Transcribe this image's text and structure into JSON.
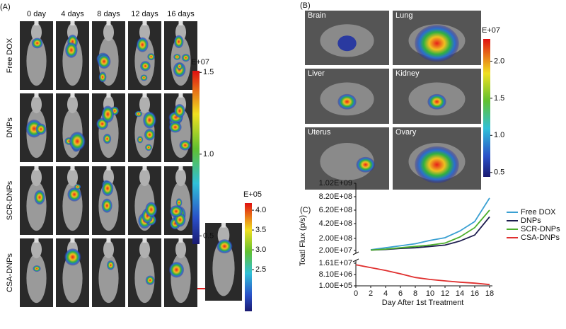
{
  "panel_a": {
    "label": "(A)",
    "columns": [
      "0 day",
      "4 days",
      "8 days",
      "12 days",
      "16 days"
    ],
    "rows": [
      "Free DOX",
      "DNPs",
      "SCR-DNPs",
      "CSA-DNPs"
    ],
    "colorbar": {
      "exponent": "E+07",
      "clim": [
        0.45,
        1.51
      ],
      "ticks": [
        1.5,
        {
          "value": 1,
          "label": "1.0"
        },
        0.5
      ]
    },
    "inset_colorbar": {
      "exponent": "E+05",
      "clim": [
        1.45,
        4.18
      ],
      "ticks": [
        {
          "value": 4,
          "label": "4.0"
        },
        3.5,
        {
          "value": 3,
          "label": "3.0"
        },
        2.5
      ]
    }
  },
  "panel_b": {
    "label": "(B)",
    "organs": [
      "Brain",
      "Lung",
      "Liver",
      "Kidney",
      "Uterus",
      "Ovary"
    ],
    "colorbar": {
      "exponent": "E+07",
      "clim": [
        0.44,
        2.3
      ],
      "ticks": [
        {
          "value": 2,
          "label": "2.0"
        },
        1.5,
        {
          "value": 1,
          "label": "1.0"
        },
        0.5
      ]
    }
  },
  "chart_data": {
    "type": "line",
    "panel_label": "(C)",
    "xlabel": "Day After 1st Treatment",
    "ylabel": "Toatl Flux (p/s)",
    "x": [
      0,
      2,
      4,
      6,
      8,
      10,
      12,
      14,
      16,
      18
    ],
    "xlim": [
      0,
      18
    ],
    "xticks": [
      0,
      2,
      4,
      6,
      8,
      10,
      12,
      14,
      16,
      18
    ],
    "ylim": [
      20000000,
      1020000000
    ],
    "yticks": [
      {
        "value": 20000000,
        "label": "2.00E+07"
      },
      {
        "value": 200000000,
        "label": "2.00E+08"
      },
      {
        "value": 420000000,
        "label": "4.20E+08"
      },
      {
        "value": 620000000,
        "label": "6.20E+08"
      },
      {
        "value": 820000000,
        "label": "8.20E+08"
      },
      {
        "value": 1020000000,
        "label": "1.02E+09"
      }
    ],
    "ylim_lower": [
      100000,
      16100000
    ],
    "yticks_lower": [
      {
        "value": 100000,
        "label": "1.00E+05"
      },
      {
        "value": 8100000,
        "label": "8.10E+06"
      },
      {
        "value": 16100000,
        "label": "1.61E+07"
      }
    ],
    "legend": "upper right",
    "series": [
      {
        "name": "Free DOX",
        "color": "#3aa0d2",
        "values": [
          null,
          30000000,
          60000000,
          90000000,
          120000000,
          170000000,
          210000000,
          310000000,
          450000000,
          800000000
        ]
      },
      {
        "name": "DNPs",
        "color": "#1c1c4e",
        "values": [
          null,
          25000000,
          35000000,
          50000000,
          60000000,
          80000000,
          100000000,
          160000000,
          250000000,
          520000000
        ]
      },
      {
        "name": "SCR-DNPs",
        "color": "#4cae2c",
        "values": [
          null,
          25000000,
          40000000,
          60000000,
          80000000,
          100000000,
          130000000,
          220000000,
          360000000,
          620000000
        ]
      },
      {
        "name": "CSA-DNPs",
        "color": "#e0302f",
        "axis": "lower",
        "values": [
          15000000,
          13000000,
          11000000,
          8600000,
          6000000,
          4600000,
          3600000,
          2700000,
          2000000,
          1000000
        ]
      }
    ]
  }
}
